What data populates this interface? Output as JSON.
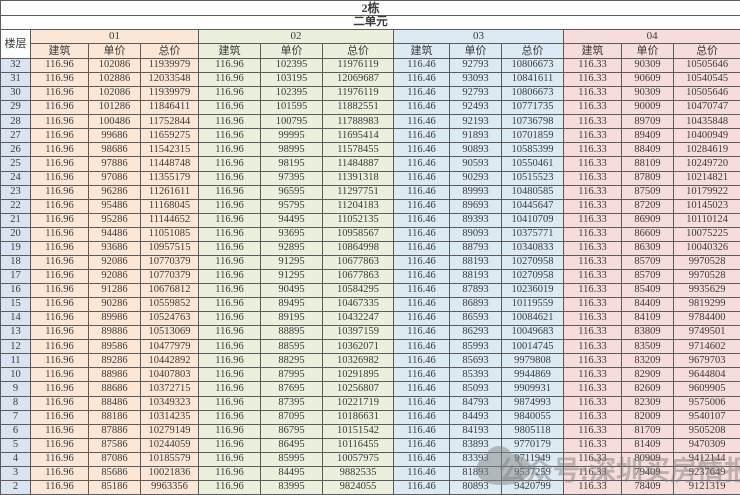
{
  "title": "2栋",
  "subtitle": "二单元",
  "floor_header": "楼层",
  "unit_labels": [
    "01",
    "02",
    "03",
    "04"
  ],
  "sub_headers": [
    "建筑",
    "单价",
    "总价"
  ],
  "watermark": {
    "text": "公众号:深圳买房情报"
  },
  "colors": {
    "unit_01": "#fce6d5",
    "unit_02": "#eaf0dc",
    "unit_03": "#dcebf3",
    "unit_04": "#f6dcda",
    "floor_column": "#d9e4f0"
  },
  "rows": [
    [
      "32",
      "116.96",
      "102086",
      "11939979",
      "116.96",
      "102395",
      "11976119",
      "116.46",
      "92793",
      "10806673",
      "116.33",
      "90309",
      "10505646"
    ],
    [
      "31",
      "116.96",
      "102886",
      "12033548",
      "116.96",
      "103195",
      "12069687",
      "116.46",
      "93093",
      "10841611",
      "116.33",
      "90609",
      "10540545"
    ],
    [
      "30",
      "116.96",
      "102086",
      "11939979",
      "116.96",
      "102395",
      "11976119",
      "116.46",
      "92793",
      "10806673",
      "116.33",
      "90309",
      "10505646"
    ],
    [
      "29",
      "116.96",
      "101286",
      "11846411",
      "116.96",
      "101595",
      "11882551",
      "116.46",
      "92493",
      "10771735",
      "116.33",
      "90009",
      "10470747"
    ],
    [
      "28",
      "116.96",
      "100486",
      "11752844",
      "116.96",
      "100795",
      "11788983",
      "116.46",
      "92193",
      "10736798",
      "116.33",
      "89709",
      "10435848"
    ],
    [
      "27",
      "116.96",
      "99686",
      "11659275",
      "116.96",
      "99995",
      "11695414",
      "116.46",
      "91893",
      "10701859",
      "116.33",
      "89409",
      "10400949"
    ],
    [
      "26",
      "116.96",
      "98686",
      "11542315",
      "116.96",
      "98995",
      "11578455",
      "116.46",
      "90893",
      "10585399",
      "116.33",
      "88409",
      "10284619"
    ],
    [
      "25",
      "116.96",
      "97886",
      "11448748",
      "116.96",
      "98195",
      "11484887",
      "116.46",
      "90593",
      "10550461",
      "116.33",
      "88109",
      "10249720"
    ],
    [
      "24",
      "116.96",
      "97086",
      "11355179",
      "116.96",
      "97395",
      "11391318",
      "116.46",
      "90293",
      "10515523",
      "116.33",
      "87809",
      "10214821"
    ],
    [
      "23",
      "116.96",
      "96286",
      "11261611",
      "116.96",
      "96595",
      "11297751",
      "116.46",
      "89993",
      "10480585",
      "116.33",
      "87509",
      "10179922"
    ],
    [
      "22",
      "116.96",
      "95486",
      "11168045",
      "116.96",
      "95795",
      "11204183",
      "116.46",
      "89693",
      "10445647",
      "116.33",
      "87209",
      "10145023"
    ],
    [
      "21",
      "116.96",
      "95286",
      "11144652",
      "116.96",
      "94495",
      "11052135",
      "116.46",
      "89393",
      "10410709",
      "116.33",
      "86909",
      "10110124"
    ],
    [
      "20",
      "116.96",
      "94486",
      "11051085",
      "116.96",
      "93695",
      "10958567",
      "116.46",
      "89093",
      "10375771",
      "116.33",
      "86609",
      "10075225"
    ],
    [
      "19",
      "116.96",
      "93686",
      "10957515",
      "116.96",
      "92895",
      "10864998",
      "116.46",
      "88793",
      "10340833",
      "116.33",
      "86309",
      "10040326"
    ],
    [
      "18",
      "116.96",
      "92086",
      "10770379",
      "116.96",
      "91295",
      "10677863",
      "116.46",
      "88193",
      "10270958",
      "116.33",
      "85709",
      "9970528"
    ],
    [
      "17",
      "116.96",
      "92086",
      "10770379",
      "116.96",
      "91295",
      "10677863",
      "116.46",
      "88193",
      "10270958",
      "116.33",
      "85709",
      "9970528"
    ],
    [
      "16",
      "116.96",
      "91286",
      "10676812",
      "116.96",
      "90495",
      "10584295",
      "116.46",
      "87893",
      "10236019",
      "116.33",
      "85409",
      "9935629"
    ],
    [
      "15",
      "116.96",
      "90286",
      "10559852",
      "116.96",
      "89495",
      "10467335",
      "116.46",
      "86893",
      "10119559",
      "116.33",
      "84409",
      "9819299"
    ],
    [
      "14",
      "116.96",
      "89986",
      "10524763",
      "116.96",
      "89195",
      "10432247",
      "116.46",
      "86593",
      "10084621",
      "116.33",
      "84109",
      "9784400"
    ],
    [
      "13",
      "116.96",
      "89886",
      "10513069",
      "116.96",
      "88895",
      "10397159",
      "116.46",
      "86293",
      "10049683",
      "116.33",
      "83809",
      "9749501"
    ],
    [
      "12",
      "116.96",
      "89586",
      "10477979",
      "116.96",
      "88595",
      "10362071",
      "116.46",
      "85993",
      "10014745",
      "116.33",
      "83509",
      "9714602"
    ],
    [
      "11",
      "116.96",
      "89286",
      "10442892",
      "116.96",
      "88295",
      "10326982",
      "116.46",
      "85693",
      "9979808",
      "116.33",
      "83209",
      "9679703"
    ],
    [
      "10",
      "116.96",
      "88986",
      "10407803",
      "116.96",
      "87995",
      "10291895",
      "116.46",
      "85393",
      "9944869",
      "116.33",
      "82909",
      "9644804"
    ],
    [
      "9",
      "116.96",
      "88686",
      "10372715",
      "116.96",
      "87695",
      "10256807",
      "116.46",
      "85093",
      "9909931",
      "116.33",
      "82609",
      "9609905"
    ],
    [
      "8",
      "116.96",
      "88486",
      "10349323",
      "116.96",
      "87395",
      "10221719",
      "116.46",
      "84793",
      "9874993",
      "116.33",
      "82309",
      "9575006"
    ],
    [
      "7",
      "116.96",
      "88186",
      "10314235",
      "116.96",
      "87095",
      "10186631",
      "116.46",
      "84493",
      "9840055",
      "116.33",
      "82009",
      "9540107"
    ],
    [
      "6",
      "116.96",
      "87886",
      "10279149",
      "116.96",
      "86795",
      "10151542",
      "116.46",
      "84193",
      "9805118",
      "116.33",
      "81709",
      "9505208"
    ],
    [
      "5",
      "116.96",
      "87586",
      "10244059",
      "116.96",
      "86495",
      "10116455",
      "116.46",
      "83893",
      "9770179",
      "116.33",
      "81409",
      "9470309"
    ],
    [
      "4",
      "116.96",
      "87086",
      "10185579",
      "116.96",
      "85995",
      "10057975",
      "116.46",
      "83393",
      "9711949",
      "116.33",
      "80909",
      "9412144"
    ],
    [
      "3",
      "116.96",
      "85686",
      "10021836",
      "116.96",
      "84495",
      "9882535",
      "116.46",
      "81893",
      "9537259",
      "116.33",
      "79409",
      "9237649"
    ],
    [
      "2",
      "116.96",
      "85186",
      "9963356",
      "116.96",
      "83995",
      "9824055",
      "116.46",
      "80893",
      "9420799",
      "116.33",
      "78409",
      "9121319"
    ]
  ]
}
